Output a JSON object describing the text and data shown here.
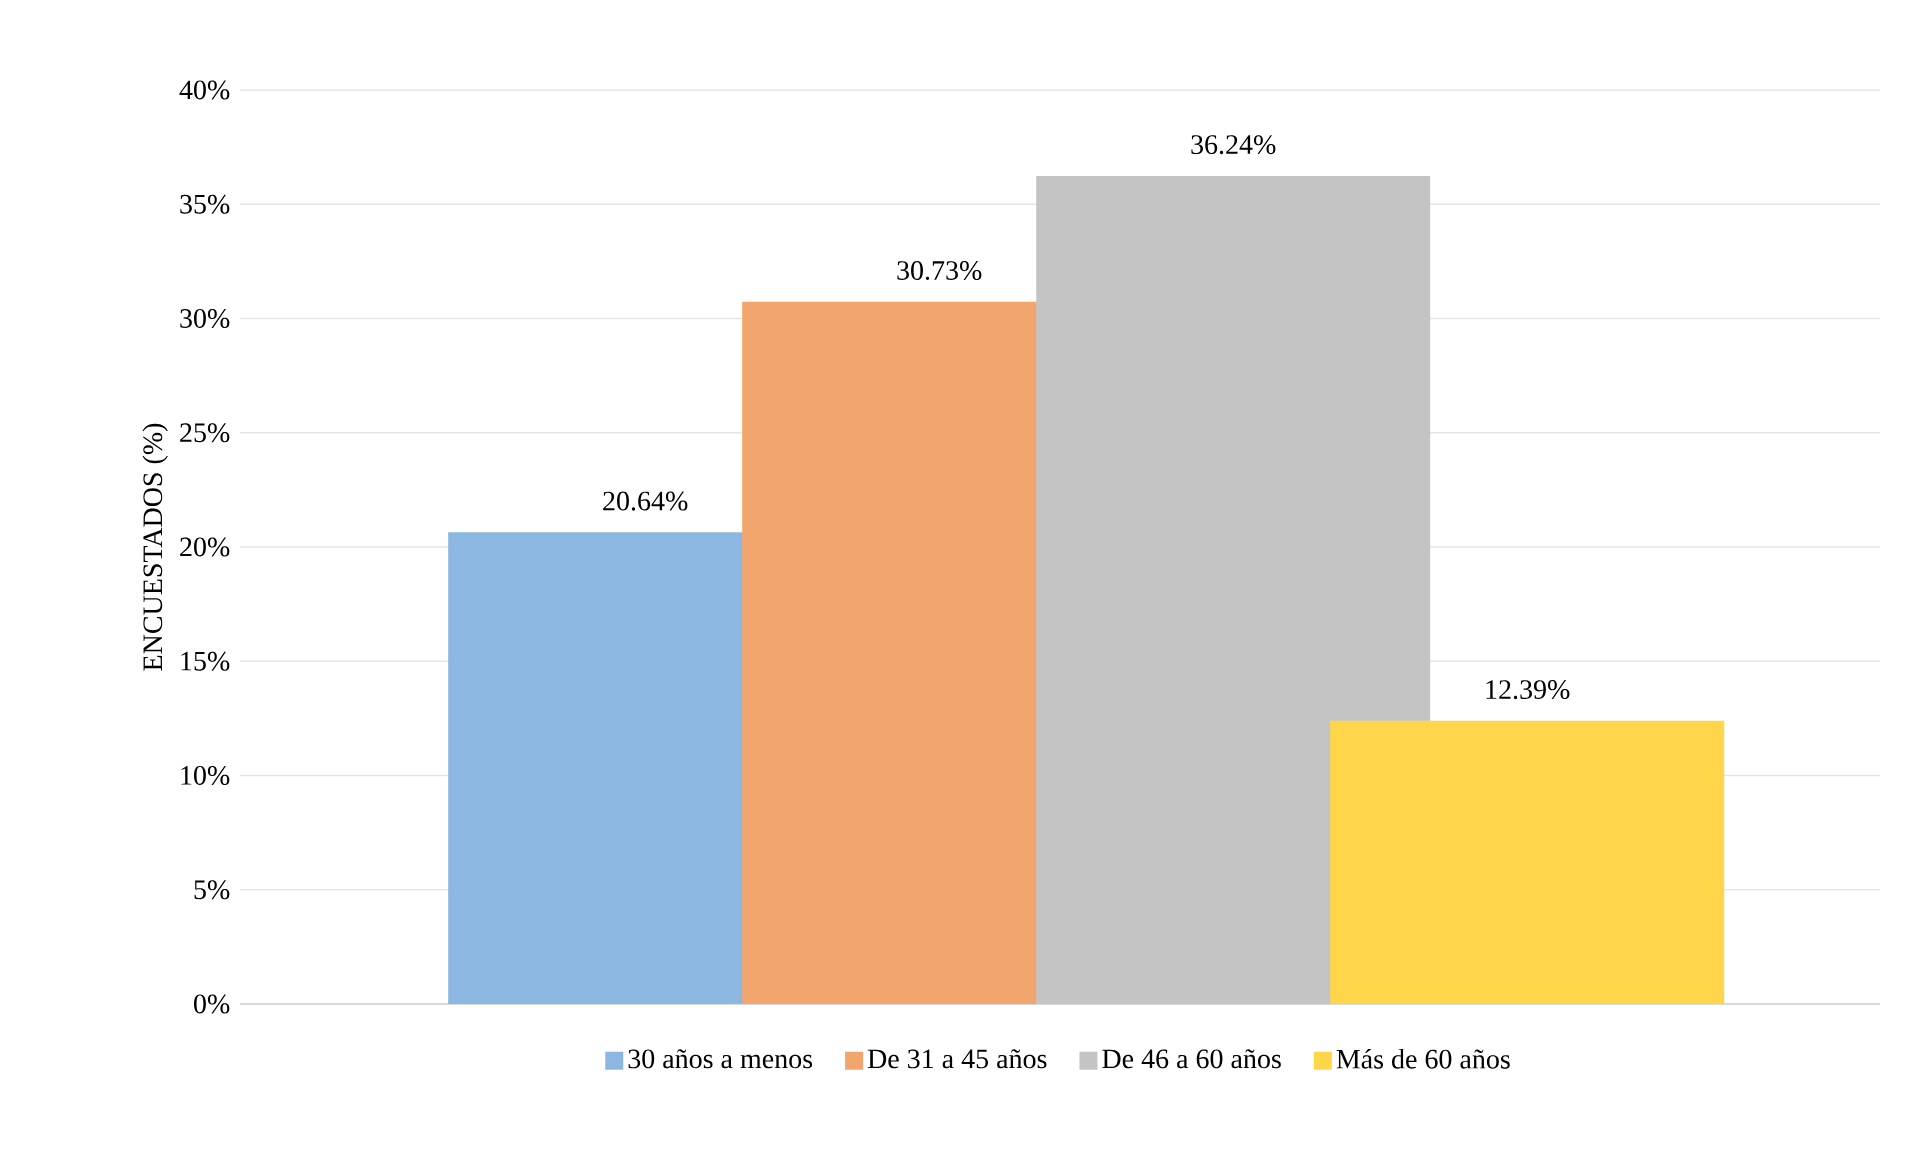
{
  "chart_data": {
    "type": "bar",
    "ylabel": "ENCUESTADOS (%)",
    "categories": [
      null
    ],
    "series": [
      {
        "name": "30 años a menos",
        "color": "#8cb7e0",
        "values": [
          20.64
        ],
        "value_labels": [
          "20.64%"
        ]
      },
      {
        "name": "De 31 a 45 años",
        "color": "#f2a66e",
        "values": [
          30.73
        ],
        "value_labels": [
          "30.73%"
        ]
      },
      {
        "name": "De 46 a 60 años",
        "color": "#c4c4c4",
        "values": [
          36.24
        ],
        "value_labels": [
          "36.24%"
        ]
      },
      {
        "name": "Más de 60 años",
        "color": "#ffd54a",
        "values": [
          12.39
        ],
        "value_labels": [
          "12.39%"
        ]
      }
    ],
    "ylim": [
      0,
      40
    ],
    "yticks": [
      {
        "value": 0,
        "label": "0%"
      },
      {
        "value": 5,
        "label": "5%"
      },
      {
        "value": 10,
        "label": "10%"
      },
      {
        "value": 15,
        "label": "15%"
      },
      {
        "value": 20,
        "label": "20%"
      },
      {
        "value": 25,
        "label": "25%"
      },
      {
        "value": 30,
        "label": "30%"
      },
      {
        "value": 35,
        "label": "35%"
      },
      {
        "value": 40,
        "label": "40%"
      }
    ],
    "grid": "y",
    "legend": "bottom"
  }
}
